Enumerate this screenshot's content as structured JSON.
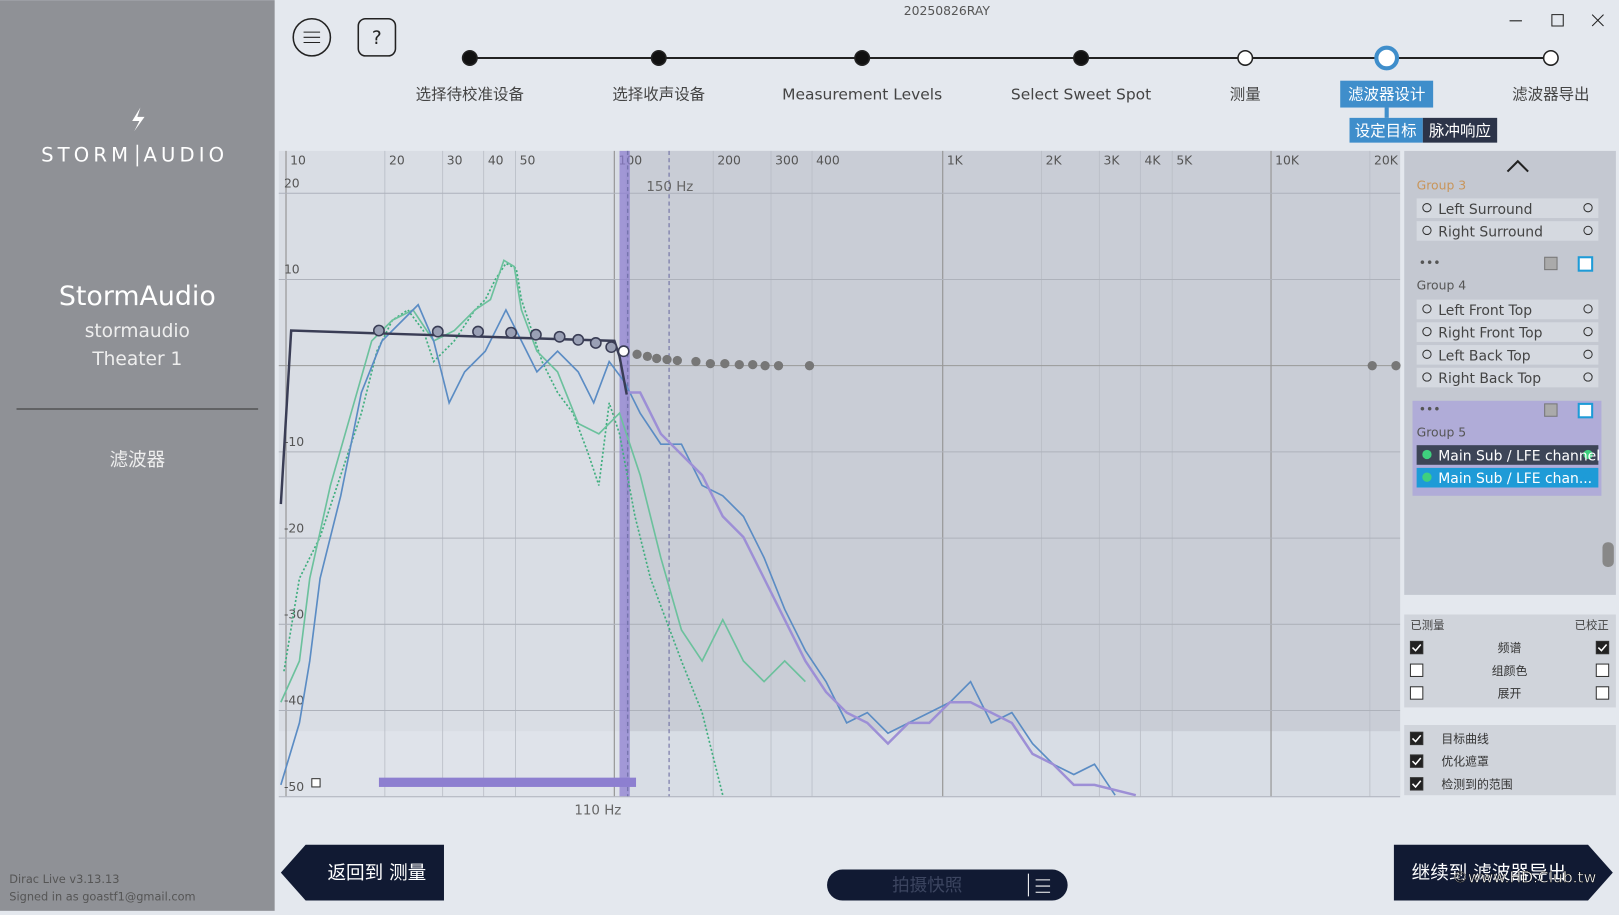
{
  "header": {
    "build": "20250826RAY"
  },
  "sidebar": {
    "brand_left": "STORM",
    "brand_right": "AUDIO",
    "product": "StormAudio",
    "user": "stormaudio",
    "theater": "Theater 1",
    "section": "滤波器",
    "version": "Dirac Live v3.13.13",
    "signed_in": "Signed in as goastf1@gmail.com"
  },
  "steps": [
    "选择待校准设备",
    "选择收声设备",
    "Measurement Levels",
    "Select Sweet Spot",
    "测量",
    "滤波器设计",
    "滤波器导出"
  ],
  "tabs": [
    "设定目标",
    "脉冲响应"
  ],
  "graph": {
    "xticks": [
      10,
      20,
      30,
      40,
      50,
      100,
      200,
      300,
      400,
      {
        "value": 1000,
        "label": "1K"
      },
      {
        "value": 2000,
        "label": "2K"
      },
      {
        "value": 3000,
        "label": "3K"
      },
      {
        "value": 4000,
        "label": "4K"
      },
      {
        "value": 5000,
        "label": "5K"
      },
      {
        "value": 10000,
        "label": "10K"
      },
      {
        "value": 20000,
        "label": "20K"
      }
    ],
    "yticks": [
      20,
      10,
      -10,
      -20,
      -30,
      -40,
      -50
    ],
    "marker_high": "150 Hz",
    "marker_low": "110 Hz"
  },
  "groups": [
    {
      "name": "Group 3",
      "channels": [
        "Left Surround",
        "Right Surround"
      ]
    },
    {
      "name": "Group 4",
      "channels": [
        "Left Front Top",
        "Right Front Top",
        "Left Back Top",
        "Right Back Top"
      ]
    },
    {
      "name": "Group 5",
      "channels": [
        "Main Sub / LFE channel",
        "Main Sub / LFE chan..."
      ]
    }
  ],
  "view_options": {
    "measured": "已测量",
    "corrected": "已校正",
    "rows": [
      "频谱",
      "组颜色",
      "展开"
    ],
    "toggles": [
      "目标曲线",
      "优化遮罩",
      "检测到的范围"
    ]
  },
  "buttons": {
    "back": "返回到 测量",
    "snapshot": "拍摄快照",
    "next": "继续到 滤波器导出"
  },
  "watermark": "©www.HD.Club.tw"
}
